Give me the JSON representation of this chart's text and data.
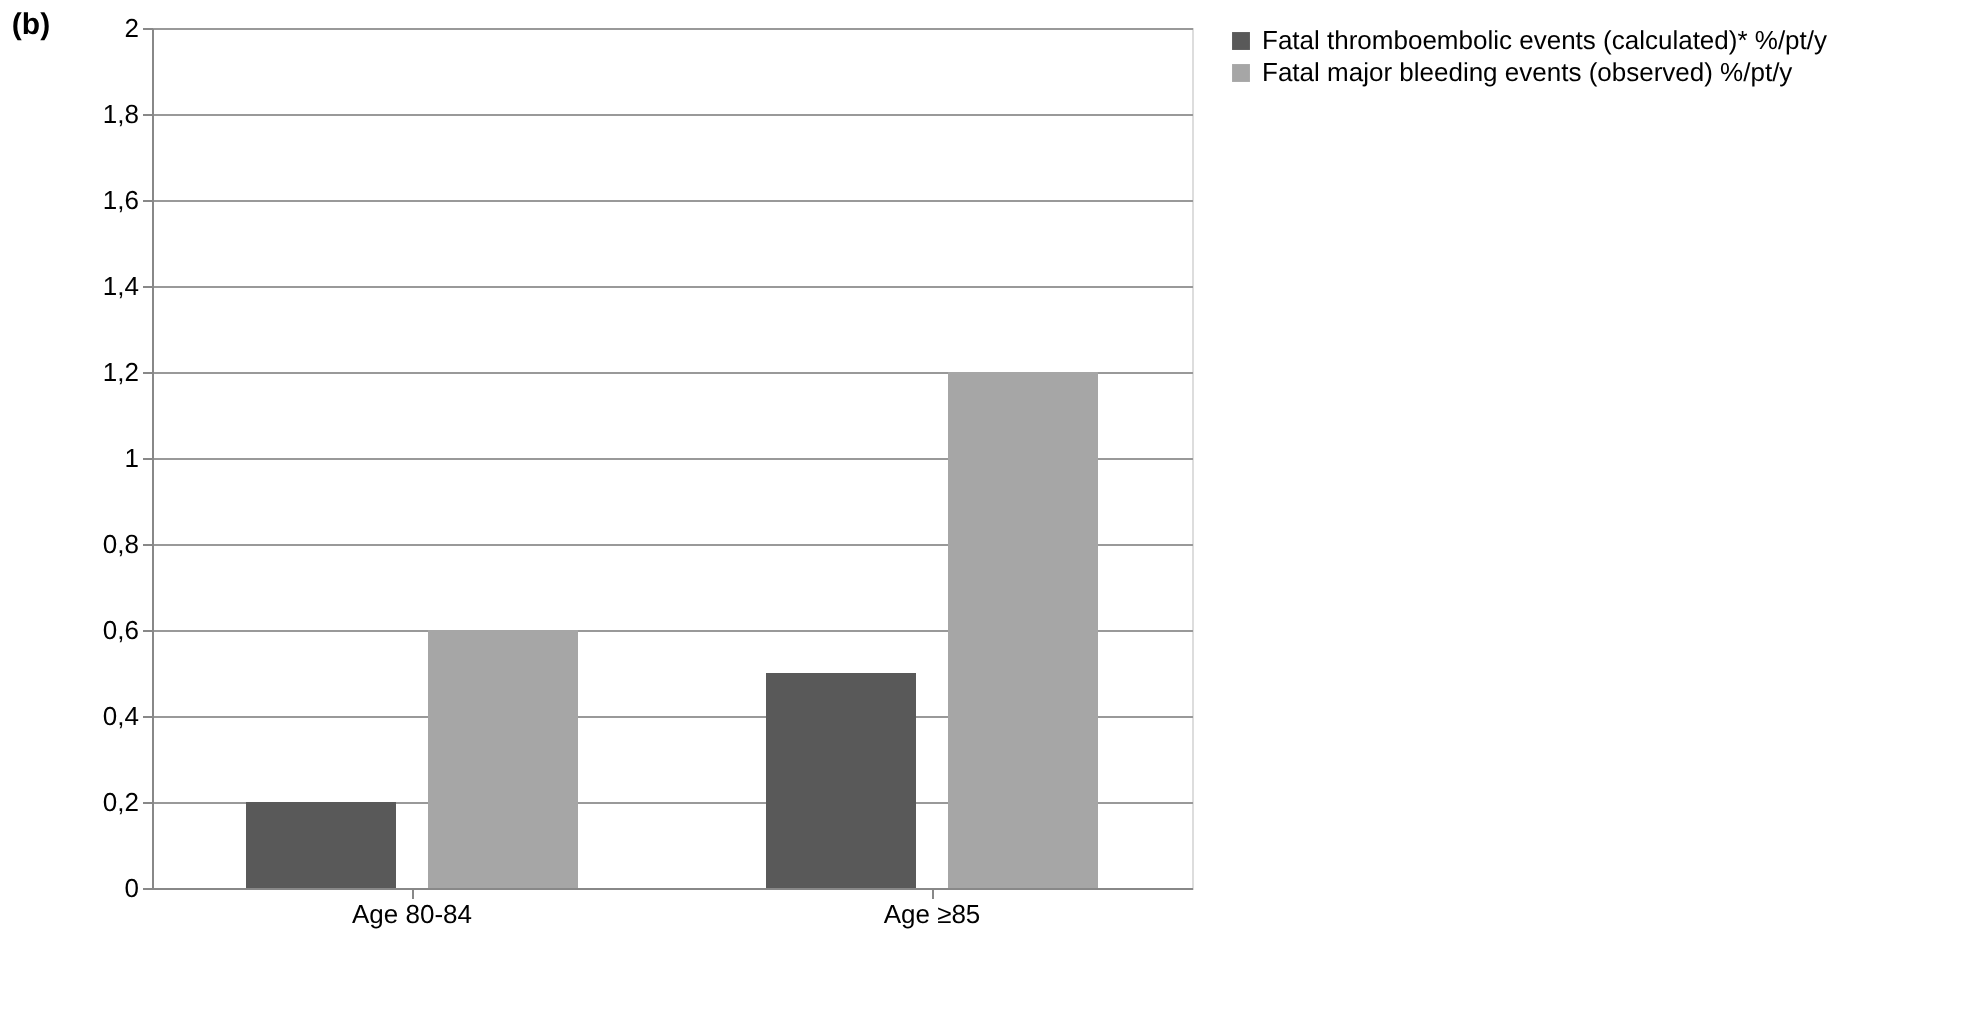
{
  "chart_data": {
    "type": "bar",
    "title": "(b)",
    "categories": [
      "Age 80-84",
      "Age ≥85"
    ],
    "series": [
      {
        "name": "Fatal thromboembolic events (calculated)* %/pt/y",
        "color": "#595959",
        "values": [
          0.2,
          0.5
        ]
      },
      {
        "name": "Fatal major bleeding events (observed) %/pt/y",
        "color": "#a6a6a6",
        "values": [
          0.6,
          1.2
        ]
      }
    ],
    "ylim": [
      0,
      2
    ],
    "yticks": [
      0,
      {
        "value": 0.2,
        "label": "0,2"
      },
      {
        "value": 0.4,
        "label": "0,4"
      },
      {
        "value": 0.6,
        "label": "0,6"
      },
      {
        "value": 0.8,
        "label": "0,8"
      },
      1,
      {
        "value": 1.2,
        "label": "1,2"
      },
      {
        "value": 1.4,
        "label": "1,4"
      },
      {
        "value": 1.6,
        "label": "1,6"
      },
      {
        "value": 1.8,
        "label": "1,8"
      },
      2
    ],
    "grid": "y",
    "legend": "right"
  }
}
